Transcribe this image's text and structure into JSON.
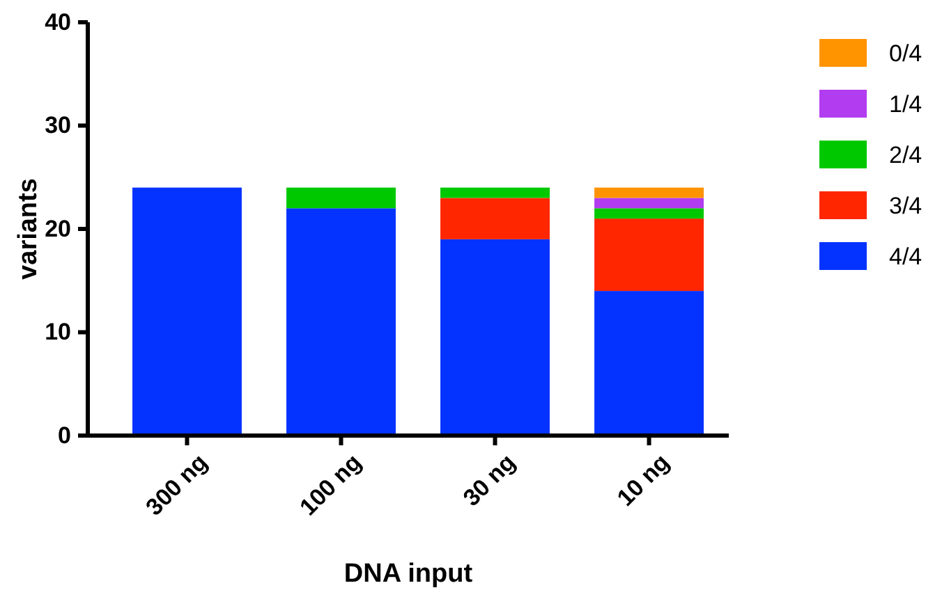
{
  "chart_data": {
    "type": "bar",
    "xlabel": "DNA input",
    "ylabel": "variants",
    "categories": [
      "300 ng",
      "100 ng",
      "30 ng",
      "10 ng"
    ],
    "stacked": true,
    "ylim": [
      0,
      40
    ],
    "yticks": [
      0,
      10,
      20,
      30,
      40
    ],
    "legend": "right",
    "grid": false,
    "series": [
      {
        "name": "4/4",
        "color": "#0433ff",
        "values": [
          24,
          22,
          19,
          14
        ]
      },
      {
        "name": "3/4",
        "color": "#ff2600",
        "values": [
          0,
          0,
          4,
          7
        ]
      },
      {
        "name": "2/4",
        "color": "#00c800",
        "values": [
          0,
          2,
          1,
          1
        ]
      },
      {
        "name": "1/4",
        "color": "#b23cef",
        "values": [
          0,
          0,
          0,
          1
        ]
      },
      {
        "name": "0/4",
        "color": "#ff9300",
        "values": [
          0,
          0,
          0,
          1
        ]
      }
    ]
  }
}
